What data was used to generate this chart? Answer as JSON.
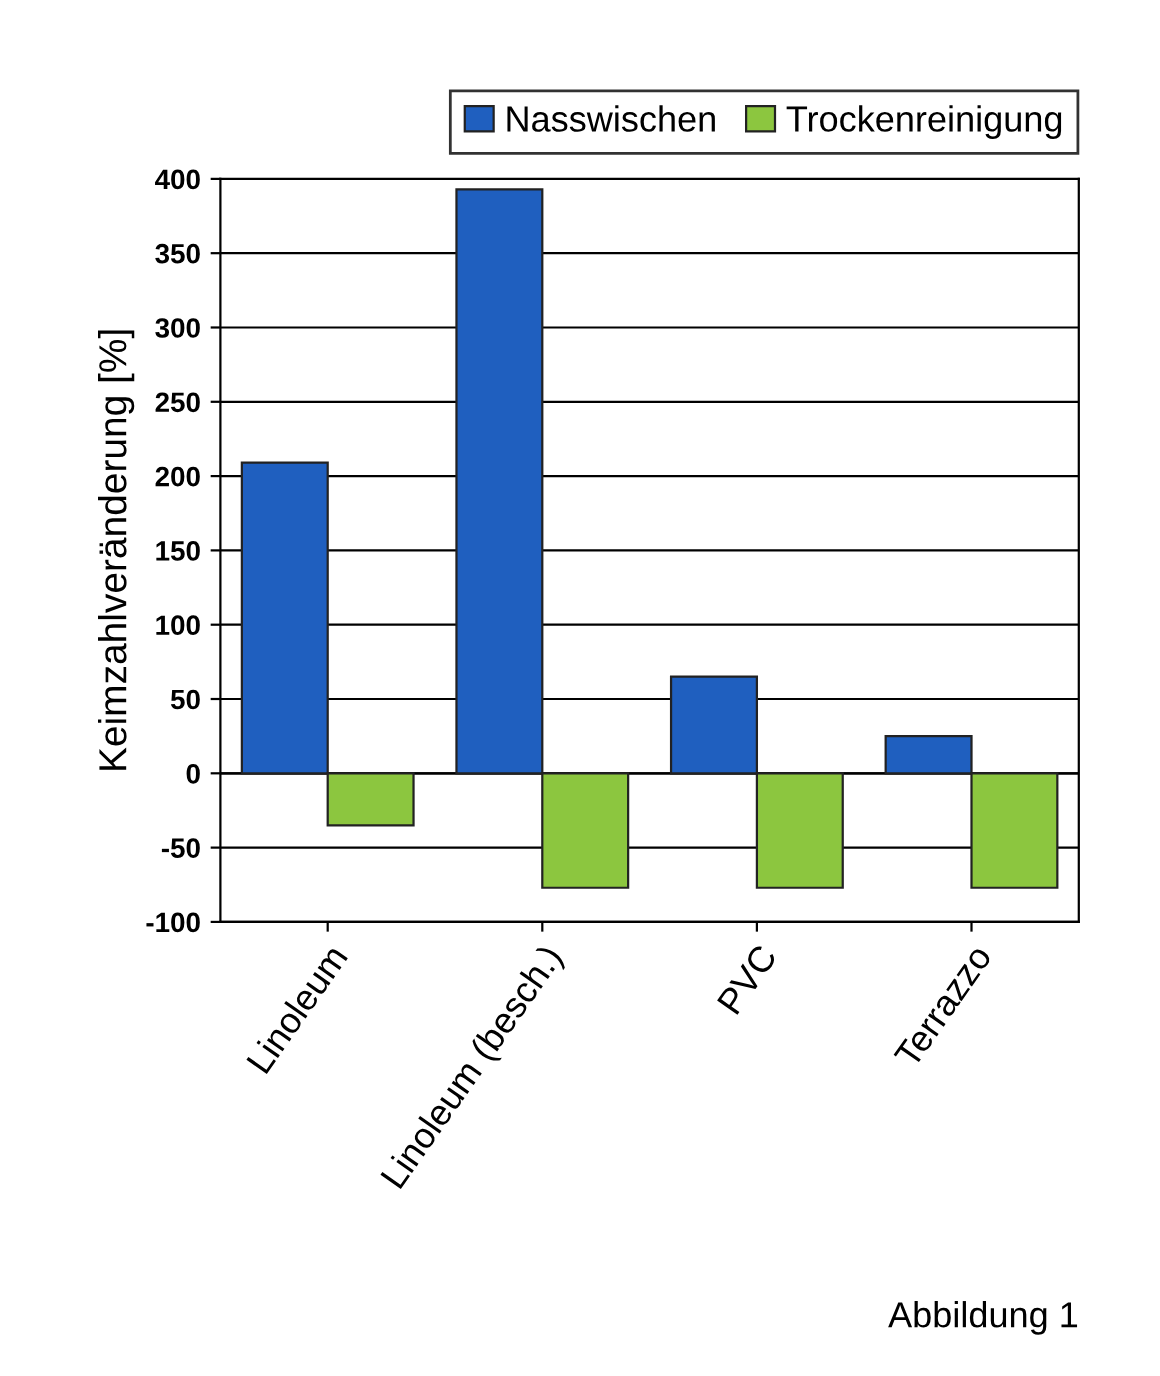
{
  "chart_data": {
    "type": "bar",
    "ylabel": "Keimzahlveränderung [%]",
    "categories": [
      "Linoleum",
      "Linoleum (besch.)",
      "PVC",
      "Terrazzo"
    ],
    "series": [
      {
        "name": "Nasswischen",
        "color": "#1f5fbf",
        "values": [
          209,
          393,
          65,
          25
        ]
      },
      {
        "name": "Trockenreinigung",
        "color": "#8cc63f",
        "values": [
          -35,
          -77,
          -77,
          -77
        ]
      }
    ],
    "ylim": [
      -100,
      400
    ],
    "yticks": [
      -100,
      -50,
      0,
      50,
      100,
      150,
      200,
      250,
      300,
      350,
      400
    ],
    "grid": "y",
    "legend": "top",
    "annotations": [
      "Abbildung 1"
    ]
  }
}
